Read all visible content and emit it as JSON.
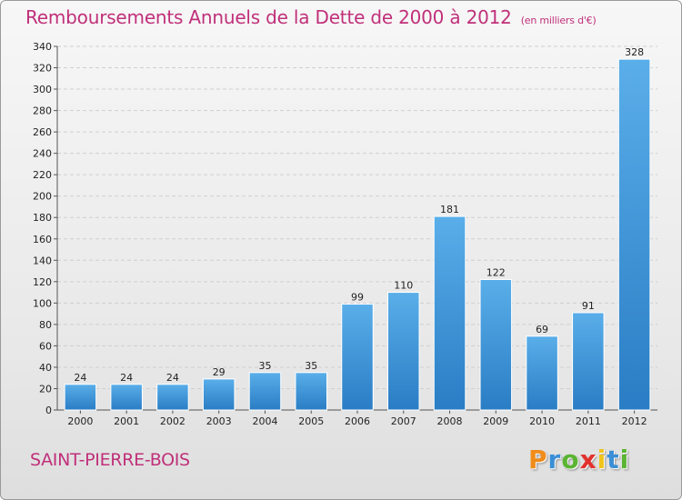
{
  "header": {
    "title": "Remboursements Annuels de la Dette de 2000 à 2012",
    "unit": "(en milliers d'€)"
  },
  "footer": {
    "city": "SAINT-PIERRE-BOIS",
    "logo_letters": [
      "P",
      "r",
      "o",
      "x",
      "i",
      "t",
      "i"
    ],
    "logo_colors": [
      "#f08c1a",
      "#3a8fd6",
      "#5bb432",
      "#e2312d",
      "#f0c419",
      "#3a8fd6",
      "#5bb432"
    ]
  },
  "colors": {
    "bar_top": "#5aaee9",
    "bar_bottom": "#2a7dc4",
    "accent": "#c0307a",
    "grid": "#cfcfcf"
  },
  "chart_data": {
    "type": "bar",
    "title": "Remboursements Annuels de la Dette de 2000 à 2012",
    "subtitle": "(en milliers d'€)",
    "categories": [
      "2000",
      "2001",
      "2002",
      "2003",
      "2004",
      "2005",
      "2006",
      "2007",
      "2008",
      "2009",
      "2010",
      "2011",
      "2012"
    ],
    "values": [
      24,
      24,
      24,
      29,
      35,
      35,
      99,
      110,
      181,
      122,
      69,
      91,
      328
    ],
    "ylim": [
      0,
      340
    ],
    "yticks": [
      0,
      20,
      40,
      60,
      80,
      100,
      120,
      140,
      160,
      180,
      200,
      220,
      240,
      260,
      280,
      300,
      320,
      340
    ],
    "grid": true,
    "legend": "none"
  }
}
